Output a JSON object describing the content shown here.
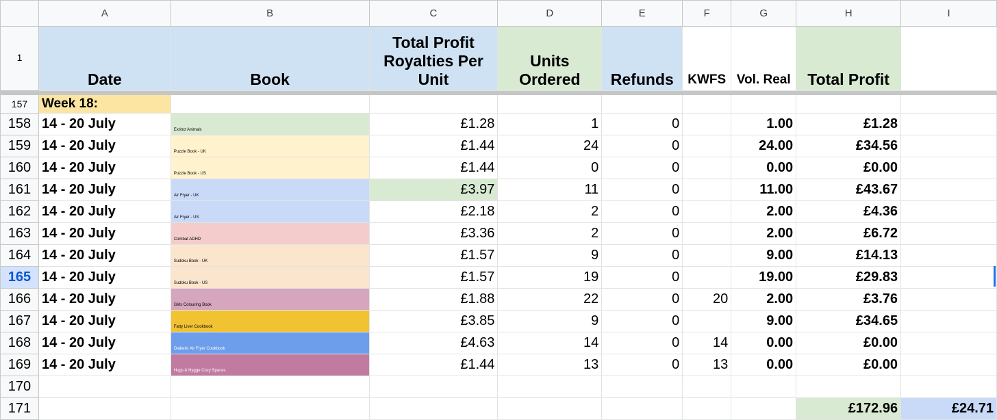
{
  "columns": [
    "A",
    "B",
    "C",
    "D",
    "E",
    "F",
    "G",
    "H",
    "I"
  ],
  "headers": {
    "row_num": "1",
    "date": "Date",
    "book": "Book",
    "royalties": "Total Profit Royalties Per Unit",
    "units": "Units Ordered",
    "refunds": "Refunds",
    "kwfs": "KWFS",
    "vol_real": "Vol. Real",
    "total_profit": "Total Profit"
  },
  "week_row": {
    "num": "157",
    "label": "Week 18:"
  },
  "rows": [
    {
      "num": "158",
      "date": "14 - 20 July",
      "book": "Extinct Animals",
      "book_color": "#d9ead3",
      "royalty": "£1.28",
      "units": "1",
      "refunds": "0",
      "kwfs": "",
      "vol": "1.00",
      "profit": "£1.28"
    },
    {
      "num": "159",
      "date": "14 - 20 July",
      "book": "Puzzle Book - UK",
      "book_color": "#fff2cc",
      "royalty": "£1.44",
      "units": "24",
      "refunds": "0",
      "kwfs": "",
      "vol": "24.00",
      "profit": "£34.56"
    },
    {
      "num": "160",
      "date": "14 - 20 July",
      "book": "Puzzle Book - US",
      "book_color": "#fff2cc",
      "royalty": "£1.44",
      "units": "0",
      "refunds": "0",
      "kwfs": "",
      "vol": "0.00",
      "profit": "£0.00"
    },
    {
      "num": "161",
      "date": "14 - 20 July",
      "book": "Air Fryer - UK",
      "book_color": "#c9daf8",
      "royalty": "£3.97",
      "royalty_bg": "#d9ead3",
      "units": "11",
      "refunds": "0",
      "kwfs": "",
      "vol": "11.00",
      "profit": "£43.67"
    },
    {
      "num": "162",
      "date": "14 - 20 July",
      "book": "Air Fryer - US",
      "book_color": "#c9daf8",
      "royalty": "£2.18",
      "units": "2",
      "refunds": "0",
      "kwfs": "",
      "vol": "2.00",
      "profit": "£4.36"
    },
    {
      "num": "163",
      "date": "14 - 20 July",
      "book": "Combat ADHD",
      "book_color": "#f4cccc",
      "royalty": "£3.36",
      "units": "2",
      "refunds": "0",
      "kwfs": "",
      "vol": "2.00",
      "profit": "£6.72"
    },
    {
      "num": "164",
      "date": "14 - 20 July",
      "book": "Sudoku Book - UK",
      "book_color": "#fce5cd",
      "royalty": "£1.57",
      "units": "9",
      "refunds": "0",
      "kwfs": "",
      "vol": "9.00",
      "profit": "£14.13"
    },
    {
      "num": "165",
      "date": "14 - 20 July",
      "book": "Sudoku Book - US",
      "book_color": "#fce5cd",
      "royalty": "£1.57",
      "units": "19",
      "refunds": "0",
      "kwfs": "",
      "vol": "19.00",
      "profit": "£29.83",
      "active": true
    },
    {
      "num": "166",
      "date": "14 - 20 July",
      "book": "Girls Colouring Book",
      "book_color": "#d5a6bd",
      "royalty": "£1.88",
      "units": "22",
      "refunds": "0",
      "kwfs": "20",
      "vol": "2.00",
      "profit": "£3.76"
    },
    {
      "num": "167",
      "date": "14 - 20 July",
      "book": "Fatty Liver Cookbook",
      "book_color": "#f1c232",
      "royalty": "£3.85",
      "units": "9",
      "refunds": "0",
      "kwfs": "",
      "vol": "9.00",
      "profit": "£34.65"
    },
    {
      "num": "168",
      "date": "14 - 20 July",
      "book": "Diabetic Air Fryer Cookbook",
      "book_color": "#6d9eeb",
      "book_light": true,
      "royalty": "£4.63",
      "units": "14",
      "refunds": "0",
      "kwfs": "14",
      "vol": "0.00",
      "profit": "£0.00"
    },
    {
      "num": "169",
      "date": "14 - 20 July",
      "book": "Hugs & Hygge Cozy Spaces",
      "book_color": "#c27ba0",
      "book_light": true,
      "royalty": "£1.44",
      "units": "13",
      "refunds": "0",
      "kwfs": "13",
      "vol": "0.00",
      "profit": "£0.00"
    }
  ],
  "empty_row": {
    "num": "170"
  },
  "totals_row": {
    "num": "171",
    "total_profit": "£172.96",
    "extra_total": "£24.71"
  }
}
